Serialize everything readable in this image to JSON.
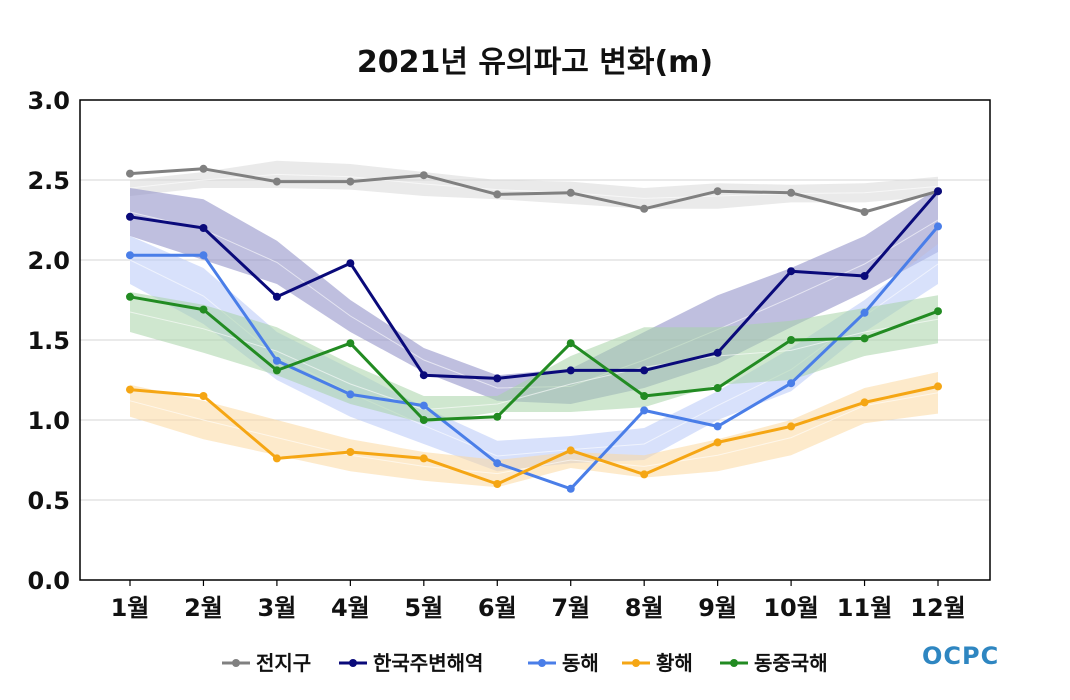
{
  "chart_data": {
    "type": "line",
    "title": "2021년 유의파고 변화(m)",
    "xlabel": "",
    "ylabel": "",
    "categories": [
      "1월",
      "2월",
      "3월",
      "4월",
      "5월",
      "6월",
      "7월",
      "8월",
      "9월",
      "10월",
      "11월",
      "12월"
    ],
    "ylim": [
      0,
      3.0
    ],
    "yticks": [
      "0.0",
      "0.5",
      "1.0",
      "1.5",
      "2.0",
      "2.5",
      "3.0"
    ],
    "grid": true,
    "legend_position": "bottom",
    "series": [
      {
        "name": "전지구",
        "color": "#808080",
        "band_color": "#d9d9d9",
        "values": [
          2.54,
          2.57,
          2.49,
          2.49,
          2.53,
          2.41,
          2.42,
          2.32,
          2.43,
          2.42,
          2.3,
          2.43
        ],
        "band_low": [
          2.4,
          2.45,
          2.45,
          2.44,
          2.4,
          2.38,
          2.35,
          2.32,
          2.32,
          2.36,
          2.36,
          2.4
        ],
        "band_high": [
          2.5,
          2.55,
          2.62,
          2.6,
          2.55,
          2.5,
          2.49,
          2.45,
          2.48,
          2.47,
          2.48,
          2.52
        ]
      },
      {
        "name": "한국주변해역",
        "color": "#0a0a7a",
        "band_color": "#8a8ac4",
        "values": [
          2.27,
          2.2,
          1.77,
          1.98,
          1.28,
          1.26,
          1.31,
          1.31,
          1.42,
          1.93,
          1.9,
          2.43
        ],
        "band_low": [
          2.15,
          2.0,
          1.85,
          1.55,
          1.3,
          1.12,
          1.1,
          1.2,
          1.35,
          1.58,
          1.8,
          2.05
        ],
        "band_high": [
          2.45,
          2.38,
          2.12,
          1.75,
          1.45,
          1.28,
          1.32,
          1.55,
          1.78,
          1.95,
          2.15,
          2.45
        ]
      },
      {
        "name": "동해",
        "color": "#4a7ee8",
        "band_color": "#b8c8f8",
        "values": [
          2.03,
          2.03,
          1.37,
          1.16,
          1.09,
          0.73,
          0.57,
          1.06,
          0.96,
          1.23,
          1.67,
          2.21
        ],
        "band_low": [
          1.85,
          1.6,
          1.25,
          1.02,
          0.85,
          0.68,
          0.73,
          0.75,
          1.0,
          1.18,
          1.55,
          1.85
        ],
        "band_high": [
          2.15,
          1.95,
          1.55,
          1.32,
          1.08,
          0.87,
          0.9,
          0.95,
          1.18,
          1.45,
          1.75,
          2.1
        ]
      },
      {
        "name": "황해",
        "color": "#f5a614",
        "band_color": "#fbd9a0",
        "values": [
          1.19,
          1.15,
          0.76,
          0.8,
          0.76,
          0.6,
          0.81,
          0.66,
          0.86,
          0.96,
          1.11,
          1.21
        ],
        "band_low": [
          1.02,
          0.88,
          0.78,
          0.68,
          0.62,
          0.58,
          0.7,
          0.64,
          0.68,
          0.78,
          0.98,
          1.04
        ],
        "band_high": [
          1.22,
          1.12,
          1.0,
          0.88,
          0.8,
          0.75,
          0.8,
          0.78,
          0.88,
          1.0,
          1.2,
          1.3
        ]
      },
      {
        "name": "동중국해",
        "color": "#228b22",
        "band_color": "#a8d4a8",
        "values": [
          1.77,
          1.69,
          1.31,
          1.48,
          1.0,
          1.02,
          1.48,
          1.15,
          1.2,
          1.5,
          1.51,
          1.68
        ],
        "band_low": [
          1.55,
          1.42,
          1.28,
          1.1,
          0.98,
          1.05,
          1.05,
          1.08,
          1.22,
          1.25,
          1.4,
          1.48
        ],
        "band_high": [
          1.8,
          1.72,
          1.58,
          1.35,
          1.15,
          1.15,
          1.4,
          1.58,
          1.58,
          1.62,
          1.7,
          1.78
        ]
      }
    ]
  },
  "logo": {
    "text": "OCPC"
  }
}
